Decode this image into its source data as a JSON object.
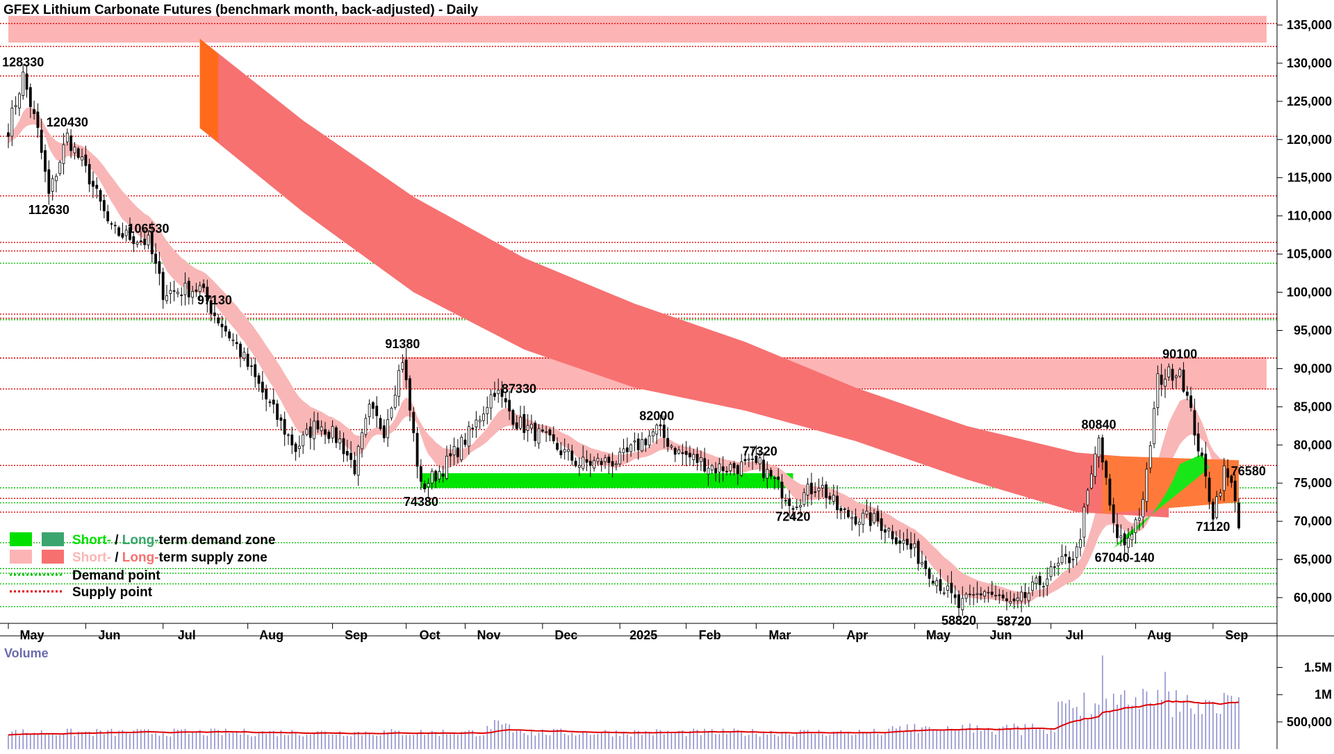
{
  "chart_data": {
    "type": "candlestick",
    "title": "GFEX Lithium Carbonate Futures (benchmark month, back-adjusted)  - Daily",
    "price_axis": {
      "min": 55500,
      "max": 136500,
      "ticks": [
        60000,
        65000,
        70000,
        75000,
        80000,
        85000,
        90000,
        95000,
        100000,
        105000,
        110000,
        115000,
        120000,
        125000,
        130000,
        135000
      ],
      "tick_labels": [
        "60,000",
        "65,000",
        "70,000",
        "75,000",
        "80,000",
        "85,000",
        "90,000",
        "95,000",
        "100,000",
        "105,000",
        "110,000",
        "115,000",
        "120,000",
        "125,000",
        "130,000",
        "135,000"
      ]
    },
    "time_axis": {
      "months": [
        {
          "label": "May",
          "index": 0
        },
        {
          "label": "Jun",
          "index": 21
        },
        {
          "label": "Jul",
          "index": 42
        },
        {
          "label": "Aug",
          "index": 65
        },
        {
          "label": "Sep",
          "index": 88
        },
        {
          "label": "Oct",
          "index": 108
        },
        {
          "label": "Nov",
          "index": 124
        },
        {
          "label": "Dec",
          "index": 145
        },
        {
          "label": "2025",
          "index": 166
        },
        {
          "label": "Feb",
          "index": 184
        },
        {
          "label": "Mar",
          "index": 203
        },
        {
          "label": "Apr",
          "index": 224
        },
        {
          "label": "May",
          "index": 246
        },
        {
          "label": "Jun",
          "index": 263
        },
        {
          "label": "Jul",
          "index": 283
        },
        {
          "label": "Aug",
          "index": 306
        },
        {
          "label": "Sep",
          "index": 327
        }
      ],
      "last_index": 334
    },
    "swing_labels": [
      {
        "text": "128330",
        "index": 4,
        "value": 128330,
        "pos": "above"
      },
      {
        "text": "120430",
        "index": 16,
        "value": 120430,
        "pos": "above"
      },
      {
        "text": "112630",
        "index": 11,
        "value": 112630,
        "pos": "below"
      },
      {
        "text": "106530",
        "index": 38,
        "value": 106530,
        "pos": "above"
      },
      {
        "text": "97130",
        "index": 56,
        "value": 97130,
        "pos": "above"
      },
      {
        "text": "91380",
        "index": 107,
        "value": 91380,
        "pos": "above"
      },
      {
        "text": "74380",
        "index": 112,
        "value": 74380,
        "pos": "below"
      },
      {
        "text": "87330",
        "index": 132,
        "value": 87330,
        "pos": "right"
      },
      {
        "text": "82000",
        "index": 176,
        "value": 82000,
        "pos": "above"
      },
      {
        "text": "77320",
        "index": 204,
        "value": 77320,
        "pos": "above"
      },
      {
        "text": "72420",
        "index": 213,
        "value": 72420,
        "pos": "below"
      },
      {
        "text": "58820",
        "index": 258,
        "value": 58820,
        "pos": "below"
      },
      {
        "text": "58720",
        "index": 273,
        "value": 58720,
        "pos": "below"
      },
      {
        "text": "80840",
        "index": 296,
        "value": 80840,
        "pos": "above"
      },
      {
        "text": "67040-140",
        "index": 303,
        "value": 67040,
        "pos": "below"
      },
      {
        "text": "90100",
        "index": 318,
        "value": 90100,
        "pos": "above"
      },
      {
        "text": "76580",
        "index": 330,
        "value": 76580,
        "pos": "right"
      },
      {
        "text": "71120",
        "index": 327,
        "value": 71120,
        "pos": "below"
      }
    ],
    "supply_points": [
      135200,
      132200,
      128330,
      120430,
      112630,
      106530,
      105400,
      97130,
      96600,
      91380,
      87330,
      82000,
      77320,
      73000,
      71200
    ],
    "demand_points": [
      103800,
      96400,
      74380,
      72420,
      67200,
      63800,
      63200,
      61800,
      58820
    ],
    "short_term_supply_zones": [
      {
        "from": 0,
        "to": 334,
        "low": 132700,
        "high": 136200
      },
      {
        "from": 107,
        "to": 334,
        "low": 87300,
        "high": 91500
      }
    ],
    "short_term_demand_zones": [
      {
        "from": 112,
        "to": 213,
        "low": 74380,
        "high": 76300
      }
    ],
    "legend": [
      {
        "label_a": "Short-",
        "label_b": " / ",
        "label_c": "Long-",
        "label_d": "term demand zone",
        "color_a": "#00e000",
        "color_b": "#3aa56e"
      },
      {
        "label_a": "Short-",
        "label_b": " / ",
        "label_c": "Long-",
        "label_d": "term supply zone",
        "color_a": "#fdb4b4",
        "color_b": "#f77070"
      },
      {
        "label": "Demand point",
        "color": "#00c000"
      },
      {
        "label": "Supply point",
        "color": "#e00000"
      }
    ],
    "volume": {
      "title": "Volume",
      "max": 1800000,
      "ticks": [
        500000,
        1000000,
        1500000
      ],
      "tick_labels": [
        "500,000",
        "1M",
        "1.5M"
      ]
    },
    "colors": {
      "up_candle": "#ffffff",
      "down_candle": "#000000",
      "ema_band": "#f9b6b6",
      "long_supply": "#f77171",
      "long_supply_edge": "#ff6a1a",
      "demand_band": "#19e619",
      "volume_bar": "#8888cc",
      "volume_ma": "#e00000"
    }
  }
}
